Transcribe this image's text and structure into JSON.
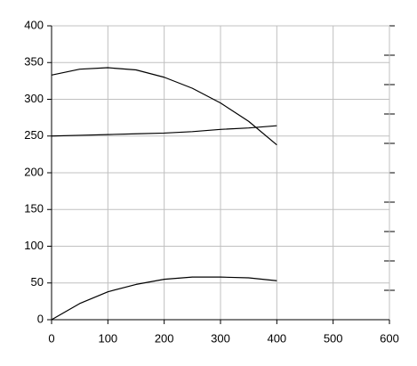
{
  "chart_data": {
    "type": "line",
    "x": [
      0,
      50,
      100,
      150,
      200,
      250,
      300,
      350,
      400
    ],
    "series": [
      {
        "color": "#000000",
        "values": [
          333,
          341,
          343,
          340,
          330,
          315,
          295,
          270,
          238
        ]
      },
      {
        "color": "#000000",
        "values": [
          250,
          251,
          252,
          253,
          254,
          256,
          259,
          261,
          264
        ]
      },
      {
        "color": "#000000",
        "values": [
          0,
          22,
          38,
          48,
          55,
          58,
          58,
          57,
          53
        ]
      }
    ],
    "xlim": [
      0,
      600
    ],
    "xticks": [
      0,
      100,
      200,
      300,
      400,
      500,
      600
    ],
    "ylim": [
      0,
      400
    ],
    "yticks": [
      0,
      50,
      100,
      150,
      200,
      250,
      300,
      350,
      400
    ],
    "grid": true
  }
}
